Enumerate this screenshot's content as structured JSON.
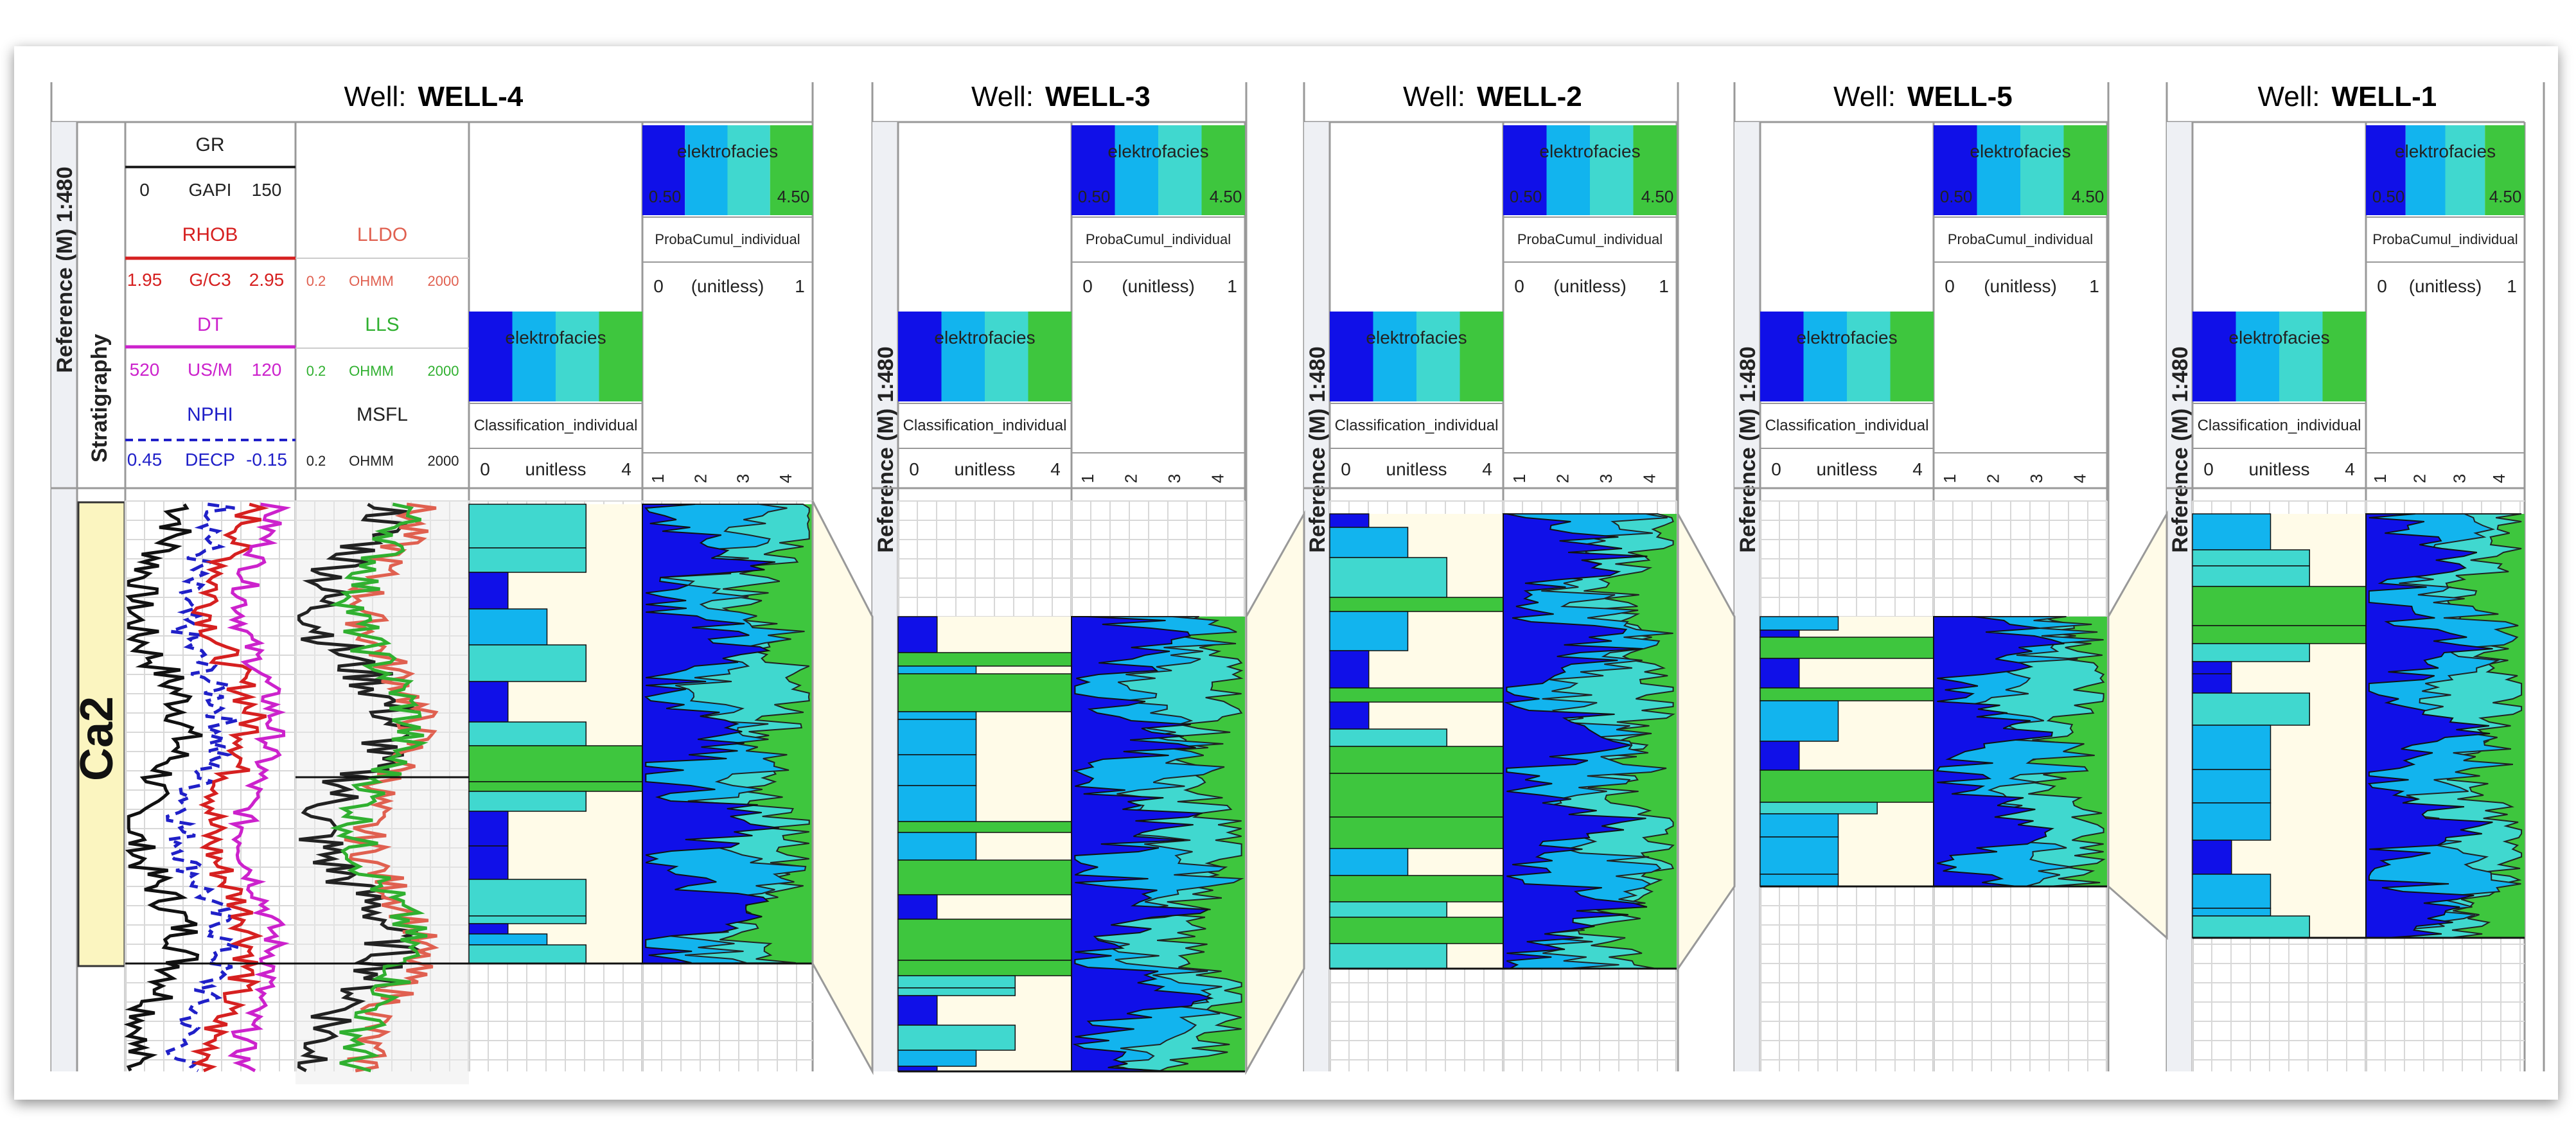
{
  "colors": {
    "dark_blue": "#1010e8",
    "cyan": "#12b4ee",
    "turquoise": "#40d8cf",
    "green": "#3ec63e",
    "cream": "#fffbe8",
    "strat_yellow": "#fbf5c0",
    "gr": "#111111",
    "rhob": "#d62020",
    "dt": "#cc22cc",
    "nphi": "#2020c8",
    "lldo": "#e06050",
    "lls": "#30b030"
  },
  "wells": [
    {
      "label": "Well:",
      "name": "WELL-4"
    },
    {
      "label": "Well:",
      "name": "WELL-3"
    },
    {
      "label": "Well:",
      "name": "WELL-2"
    },
    {
      "label": "Well:",
      "name": "WELL-5"
    },
    {
      "label": "Well:",
      "name": "WELL-1"
    }
  ],
  "reference_label": "Reference (M) 1:480",
  "reference_label_cut": "Reference (M) 1:480",
  "stratigraphy_label": "Stratigraphy",
  "zone_label": "Ca2",
  "logs": {
    "gr": {
      "name": "GR",
      "min": "0",
      "unit": "GAPI",
      "max": "150"
    },
    "rhob": {
      "name": "RHOB",
      "min": "1.95",
      "unit": "G/C3",
      "max": "2.95"
    },
    "dt": {
      "name": "DT",
      "min": "520",
      "unit": "US/M",
      "max": "120"
    },
    "nphi": {
      "name": "NPHI",
      "min": "0.45",
      "unit": "DECP",
      "max": "-0.15"
    },
    "lldo": {
      "name": "LLDO",
      "min": "0.2",
      "unit": "OHMM",
      "max": "2000"
    },
    "lls": {
      "name": "LLS",
      "min": "0.2",
      "unit": "OHMM",
      "max": "2000"
    },
    "msfl": {
      "name": "MSFL",
      "min": "0.2",
      "unit": "OHMM",
      "max": "2000"
    }
  },
  "facies": {
    "title": "elektrofacies",
    "proba_min": "0.50",
    "proba_max": "4.50",
    "proba_track": "ProbaCumul_individual",
    "proba_min_val": "0",
    "proba_unit": "(unitless)",
    "proba_max_val": "1",
    "class_track": "Classification_individual",
    "class_min": "0",
    "class_unit": "unitless",
    "class_max": "4",
    "ticks": [
      "1",
      "2",
      "3",
      "4"
    ]
  }
}
